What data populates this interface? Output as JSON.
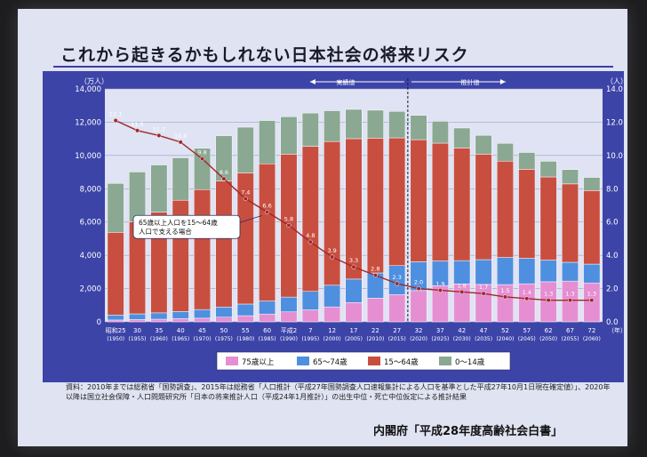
{
  "slide": {
    "title": "これから起きるかもしれない日本社会の将来リスク",
    "note": "資料：2010年までは総務省「国勢調査」、2015年は総務省「人口推計（平成27年国勢調査人口速報集計による人口を基準とした平成27年10月1日現在確定値）」、2020年以降は国立社会保障・人口問題研究所「日本の将来推計人口（平成24年1月推計）」の出生中位・死亡中位仮定による推計結果",
    "source": "内閣府「平成28年度高齢社会白書」"
  },
  "chart_data": {
    "type": "bar",
    "stacked": true,
    "left_unit": "（万人）",
    "right_unit": "（人）",
    "year_unit": "（年）",
    "ylim": [
      0,
      14000
    ],
    "y_ticks": [
      "0",
      "2,000",
      "4,000",
      "6,000",
      "8,000",
      "10,000",
      "12,000",
      "14,000"
    ],
    "y2lim": [
      0,
      14.0
    ],
    "y2_ticks": [
      "0.0",
      "2.0",
      "4.0",
      "6.0",
      "8.0",
      "10.0",
      "12.0",
      "14.0"
    ],
    "categories": [
      "昭和25",
      "30",
      "35",
      "40",
      "45",
      "50",
      "55",
      "60",
      "平成2",
      "7",
      "12",
      "17",
      "22",
      "27",
      "32",
      "37",
      "42",
      "47",
      "52",
      "57",
      "62",
      "67",
      "72"
    ],
    "sub_categories": [
      "(1950)",
      "(1955)",
      "(1960)",
      "(1965)",
      "(1970)",
      "(1975)",
      "(1980)",
      "(1985)",
      "(1990)",
      "(1995)",
      "(2000)",
      "(2005)",
      "(2010)",
      "(2015)",
      "(2020)",
      "(2025)",
      "(2030)",
      "(2035)",
      "(2040)",
      "(2045)",
      "(2050)",
      "(2055)",
      "(2060)"
    ],
    "series": [
      {
        "name": "75歳以上",
        "color": "#e58fd2",
        "values": [
          110,
          140,
          160,
          190,
          220,
          280,
          370,
          470,
          600,
          720,
          900,
          1160,
          1420,
          1630,
          1880,
          2180,
          2280,
          2250,
          2240,
          2290,
          2410,
          2450,
          2340
        ]
      },
      {
        "name": "65～74歳",
        "color": "#4f8fe0",
        "values": [
          300,
          340,
          380,
          430,
          520,
          610,
          700,
          780,
          890,
          1110,
          1300,
          1410,
          1520,
          1750,
          1730,
          1480,
          1400,
          1490,
          1630,
          1530,
          1300,
          1130,
          1130
        ]
      },
      {
        "name": "15～64歳",
        "color": "#c84f40",
        "values": [
          4970,
          5520,
          6050,
          6690,
          7210,
          7580,
          7880,
          8250,
          8590,
          8720,
          8640,
          8440,
          8100,
          7680,
          7340,
          7080,
          6770,
          6340,
          5790,
          5350,
          5000,
          4710,
          4420
        ]
      },
      {
        "name": "0～14歳",
        "color": "#8aa892",
        "values": [
          2940,
          3010,
          2840,
          2550,
          2480,
          2720,
          2750,
          2600,
          2250,
          2000,
          1850,
          1760,
          1680,
          1590,
          1460,
          1320,
          1200,
          1130,
          1070,
          1010,
          940,
          860,
          790
        ]
      }
    ],
    "line": {
      "name": "65歳以上人口を15～64歳人口で支える場合",
      "values": [
        12.1,
        11.5,
        11.2,
        10.8,
        9.8,
        8.6,
        7.4,
        6.6,
        5.8,
        4.8,
        3.9,
        3.3,
        2.8,
        2.3,
        2.0,
        1.9,
        1.8,
        1.7,
        1.5,
        1.4,
        1.3,
        1.3,
        1.3
      ],
      "labels": [
        "12.1",
        "11.5",
        "11.2",
        "10.8",
        "9.8",
        "8.6",
        "7.4",
        "6.6",
        "5.8",
        "4.8",
        "3.9",
        "3.3",
        "2.8",
        "2.3",
        "2.0",
        "1.9",
        "1.8",
        "1.7",
        "1.5",
        "1.4",
        "1.3",
        "1.3",
        "1.3"
      ]
    },
    "annotations": {
      "actual": "実績値",
      "projection": "推計値",
      "callout": [
        "65歳以上人口を15～64歳",
        "人口で支える場合"
      ]
    },
    "legend": {
      "placement": "bottom",
      "order": [
        "75歳以上",
        "65～74歳",
        "15～64歳",
        "0～14歳"
      ]
    }
  }
}
